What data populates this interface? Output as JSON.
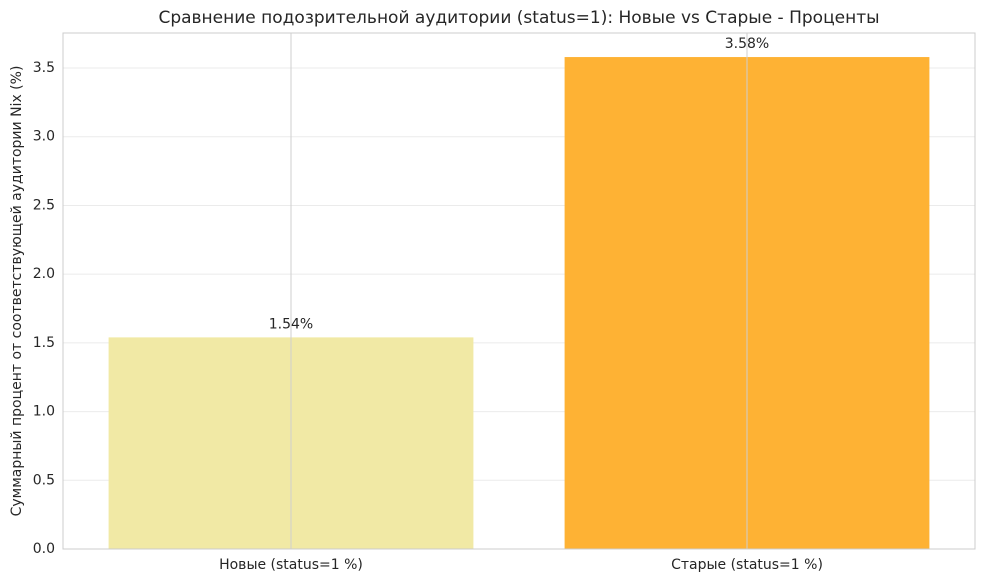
{
  "chart_data": {
    "type": "bar",
    "title": "Сравнение подозрительной аудитории (status=1): Новые vs Старые - Проценты",
    "y_label": "Суммарный процент от соответствующей аудитории Nix (%)",
    "categories": [
      "Новые (status=1 %)",
      "Старые (status=1 %)"
    ],
    "values": [
      1.54,
      3.58
    ],
    "value_labels": [
      "1.54%",
      "3.58%"
    ],
    "colors": [
      "#f1e9a5",
      "#feb234"
    ],
    "ylim": [
      0,
      3.755
    ],
    "yticks": [
      {
        "value": 0,
        "label": "0.0"
      },
      0.5,
      {
        "value": 1,
        "label": "1.0"
      },
      1.5,
      {
        "value": 2,
        "label": "2.0"
      },
      2.5,
      {
        "value": 3,
        "label": "3.0"
      },
      3.5
    ],
    "grid": true
  }
}
